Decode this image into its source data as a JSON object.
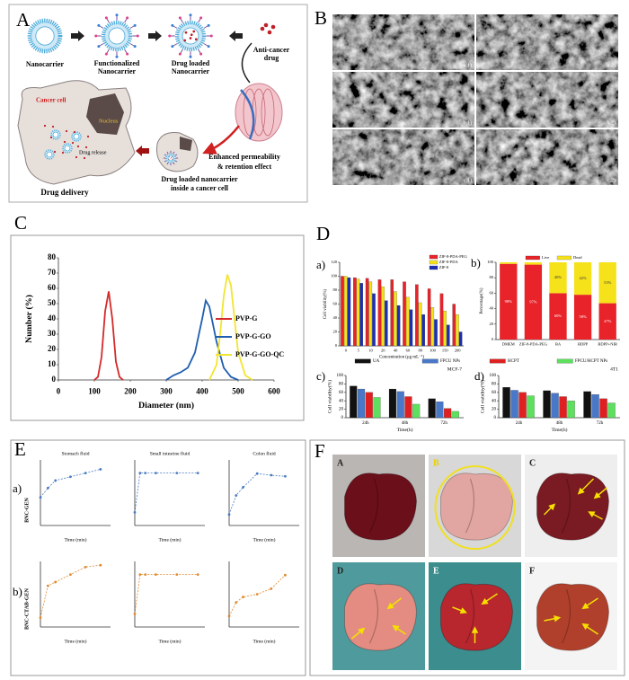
{
  "panels": {
    "A": {
      "label": "A",
      "nanocarrier": "Nanocarrier",
      "functionalized": [
        "Functionalized",
        "Nanocarrier"
      ],
      "drug_loaded": [
        "Drug loaded",
        "Nanocarrier"
      ],
      "drug": [
        "Anti-cancer",
        "drug"
      ],
      "epr": [
        "Enhanced permeability",
        "& retention effect"
      ],
      "cancer_cell": "Cancer cell",
      "nucleus": "Nucleus",
      "release": "Drug release",
      "inside": [
        "Drug loaded nanocarrier",
        "inside a cancer cell"
      ],
      "delivery": "Drug delivery"
    },
    "B": {
      "label": "B",
      "images": [
        "a.1)",
        "a.2)",
        "b.1)",
        "b.2)",
        "c.1)",
        "c.2)"
      ]
    },
    "C": {
      "label": "C"
    },
    "D": {
      "label": "D",
      "sublabels": [
        "a)",
        "b)",
        "c)",
        "d)"
      ]
    },
    "E": {
      "label": "E",
      "sublabels": [
        "a)",
        "b)"
      ],
      "rows": [
        "BNC-GEN",
        "BNC-CTAB-GEN"
      ]
    },
    "F": {
      "label": "F",
      "images": [
        "A",
        "B",
        "C",
        "D",
        "E",
        "F"
      ]
    }
  },
  "chart_data": [
    {
      "type": "line",
      "xlabel": "Diameter (nm)",
      "ylabel": "Number (%)",
      "xlim": [
        0,
        600
      ],
      "ylim": [
        0,
        80
      ],
      "xticks": [
        0,
        100,
        200,
        300,
        400,
        500,
        600
      ],
      "yticks": [
        0,
        10,
        20,
        30,
        40,
        50,
        60,
        70,
        80
      ],
      "legend": "right",
      "series": [
        {
          "name": "PVP-G",
          "color": "#d42a2a",
          "x": [
            100,
            110,
            120,
            130,
            140,
            150,
            160,
            170,
            180
          ],
          "values": [
            0,
            2,
            15,
            45,
            58,
            40,
            12,
            2,
            0
          ]
        },
        {
          "name": "PVP-G-GO",
          "color": "#1f5fb0",
          "x": [
            300,
            320,
            340,
            360,
            380,
            400,
            410,
            420,
            440,
            460,
            480,
            500
          ],
          "values": [
            0,
            3,
            5,
            8,
            18,
            40,
            52,
            48,
            25,
            8,
            2,
            0
          ]
        },
        {
          "name": "PVP-G-GO-QC",
          "color": "#f2e531",
          "x": [
            420,
            440,
            450,
            460,
            470,
            480,
            490,
            500,
            520,
            540
          ],
          "values": [
            0,
            10,
            30,
            55,
            69,
            62,
            40,
            18,
            3,
            0
          ]
        }
      ]
    },
    {
      "type": "bar",
      "xlabel": "Concentration (μg mL⁻¹)",
      "ylabel": "Cell viability(%)",
      "categories": [
        "0",
        "5",
        "10",
        "20",
        "40",
        "60",
        "80",
        "100",
        "150",
        "200"
      ],
      "ylim": [
        0,
        120
      ],
      "yticks": [
        0,
        20,
        40,
        60,
        80,
        100,
        120
      ],
      "legend": "upper right",
      "series": [
        {
          "name": "ZIF-8-PDA-PEG",
          "color": "#e8232a",
          "values": [
            100,
            98,
            97,
            95,
            95,
            92,
            88,
            82,
            75,
            60
          ]
        },
        {
          "name": "ZIF-8-PDA",
          "color": "#f5e21b",
          "values": [
            100,
            96,
            92,
            85,
            78,
            70,
            62,
            55,
            50,
            45
          ]
        },
        {
          "name": "ZIF-8",
          "color": "#1c2fb5",
          "values": [
            98,
            90,
            75,
            65,
            58,
            52,
            45,
            38,
            30,
            20
          ]
        }
      ]
    },
    {
      "type": "bar",
      "stacked": true,
      "ylabel": "Percentage(%)",
      "categories": [
        "DMEM",
        "ZIF-8-PDA-PEG",
        "BA",
        "BDPP",
        "BDPP+NIR"
      ],
      "ylim": [
        0,
        100
      ],
      "yticks": [
        0,
        20,
        40,
        60,
        80,
        100
      ],
      "legend": "top",
      "series": [
        {
          "name": "Live",
          "color": "#e8232a",
          "values": [
            98,
            97,
            60,
            58,
            47
          ],
          "value_labels": [
            "98%",
            "97%",
            "60%",
            "58%",
            "47%"
          ]
        },
        {
          "name": "Dead",
          "color": "#f5e21b",
          "values": [
            2,
            3,
            40,
            42,
            53
          ],
          "value_labels": [
            null,
            null,
            "40%",
            "42%",
            "53%"
          ]
        }
      ]
    },
    {
      "type": "bar",
      "title": "MCF-7",
      "xlabel": "Time(h)",
      "ylabel": "Cell viability(%)",
      "categories": [
        "24h",
        "48h",
        "72h"
      ],
      "ylim": [
        0,
        100
      ],
      "yticks": [
        0,
        20,
        40,
        60,
        80,
        100
      ],
      "legend": "top",
      "series": [
        {
          "name": "UA",
          "color": "#111111",
          "values": [
            75,
            68,
            45
          ]
        },
        {
          "name": "FPCU NPs",
          "color": "#4a78c8",
          "values": [
            68,
            62,
            38
          ]
        },
        {
          "name": "HCPT",
          "color": "#e02020",
          "values": [
            60,
            50,
            22
          ]
        },
        {
          "name": "FPCU/HCPT NPs",
          "color": "#5ee05e",
          "values": [
            48,
            32,
            15
          ]
        }
      ]
    },
    {
      "type": "bar",
      "title": "4T1",
      "xlabel": "Time(h)",
      "ylabel": "Cell viability(%)",
      "categories": [
        "24h",
        "48h",
        "72h"
      ],
      "ylim": [
        0,
        100
      ],
      "yticks": [
        0,
        20,
        40,
        60,
        80,
        100
      ],
      "series": [
        {
          "color": "#111111",
          "values": [
            72,
            64,
            62
          ]
        },
        {
          "color": "#4a78c8",
          "values": [
            65,
            58,
            55
          ]
        },
        {
          "color": "#e02020",
          "values": [
            60,
            50,
            45
          ]
        },
        {
          "color": "#5ee05e",
          "values": [
            52,
            40,
            35
          ]
        }
      ]
    },
    {
      "type": "line",
      "title": "Stomach fluid",
      "xlabel": "Time (min)",
      "xlim": [
        0,
        140
      ],
      "ylim": [
        0,
        35
      ],
      "dashed": true,
      "markers": true,
      "series": [
        {
          "color": "#4a7cc0",
          "x": [
            0,
            15,
            30,
            60,
            90,
            120
          ],
          "values": [
            15,
            20,
            24,
            26,
            28,
            30
          ]
        }
      ]
    },
    {
      "type": "line",
      "title": "Small intestine fluid",
      "xlabel": "Time (min)",
      "xlim": [
        0,
        200
      ],
      "ylim": [
        0,
        25
      ],
      "dashed": true,
      "markers": true,
      "series": [
        {
          "color": "#4a7cc0",
          "x": [
            0,
            15,
            30,
            60,
            120,
            180
          ],
          "values": [
            5,
            20,
            20,
            20,
            20,
            20
          ]
        }
      ]
    },
    {
      "type": "line",
      "title": "Colon fluid",
      "xlabel": "Time (min)",
      "xlim": [
        0,
        300
      ],
      "ylim": [
        0,
        120
      ],
      "dashed": true,
      "markers": true,
      "series": [
        {
          "color": "#4a7cc0",
          "x": [
            0,
            30,
            60,
            120,
            180,
            240
          ],
          "values": [
            20,
            55,
            70,
            95,
            92,
            90
          ]
        }
      ]
    },
    {
      "type": "line",
      "xlabel": "Time (min)",
      "xlim": [
        0,
        140
      ],
      "ylim": [
        0,
        35
      ],
      "dashed": true,
      "markers": true,
      "series": [
        {
          "color": "#e08a30",
          "x": [
            0,
            15,
            30,
            60,
            90,
            120
          ],
          "values": [
            5,
            22,
            24,
            28,
            32,
            33
          ]
        }
      ]
    },
    {
      "type": "line",
      "xlabel": "Time (min)",
      "xlim": [
        0,
        200
      ],
      "ylim": [
        0,
        25
      ],
      "dashed": true,
      "markers": true,
      "series": [
        {
          "color": "#e08a30",
          "x": [
            0,
            15,
            30,
            60,
            120,
            180
          ],
          "values": [
            5,
            20,
            20,
            20,
            20,
            20
          ]
        }
      ]
    },
    {
      "type": "line",
      "xlabel": "Time (min)",
      "xlim": [
        0,
        300
      ],
      "ylim": [
        0,
        120
      ],
      "dashed": true,
      "markers": true,
      "series": [
        {
          "color": "#e08a30",
          "x": [
            0,
            30,
            60,
            120,
            180,
            240
          ],
          "values": [
            20,
            45,
            55,
            60,
            70,
            95
          ]
        }
      ]
    }
  ]
}
